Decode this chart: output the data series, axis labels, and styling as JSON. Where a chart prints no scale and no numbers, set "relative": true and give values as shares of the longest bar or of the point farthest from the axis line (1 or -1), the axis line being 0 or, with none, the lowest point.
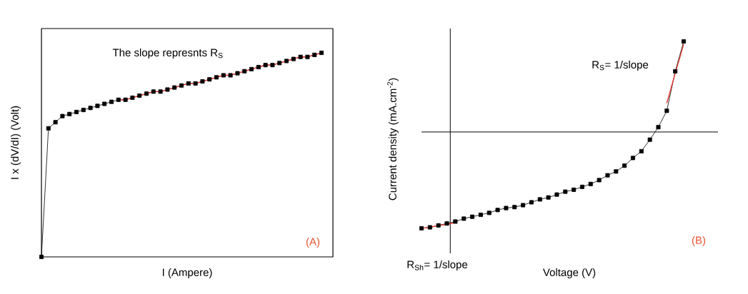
{
  "chart_data": [
    {
      "type": "line",
      "relative": true,
      "xlabel": "I (Ampere)",
      "ylabel": "I x (dV/dI) (Volt)",
      "annotations": [
        "The slope represnts R$_{S}$",
        "(A)"
      ],
      "categories": [
        null,
        null,
        null,
        null,
        null,
        null,
        null,
        null,
        null,
        null,
        null,
        null,
        null,
        null,
        null,
        null,
        null,
        null,
        null,
        null,
        null,
        null,
        null,
        null,
        null,
        null,
        null,
        null,
        null,
        null,
        null,
        null,
        null,
        null,
        null,
        null,
        null,
        null,
        null,
        null,
        null
      ],
      "series": [
        {
          "color": "#000000",
          "marker": "square",
          "values": [
            0,
            0.63,
            0.66,
            0.69,
            0.7,
            0.71,
            0.72,
            0.73,
            0.74,
            0.75,
            0.76,
            0.77,
            0.77,
            0.78,
            0.79,
            0.8,
            0.81,
            0.81,
            0.82,
            0.83,
            0.84,
            0.85,
            0.85,
            0.86,
            0.87,
            0.88,
            0.89,
            0.89,
            0.9,
            0.91,
            0.92,
            0.93,
            0.94,
            0.94,
            0.95,
            0.96,
            0.97,
            0.98,
            0.98,
            0.99,
            1
          ]
        },
        {
          "color": "#e8302a",
          "marker": "none",
          "values": [
            null,
            null,
            null,
            null,
            null,
            null,
            null,
            null,
            null,
            null,
            null,
            0.77,
            0.77,
            0.78,
            0.79,
            0.8,
            0.81,
            0.81,
            0.82,
            0.83,
            0.84,
            0.85,
            0.85,
            0.86,
            0.87,
            0.88,
            0.89,
            0.89,
            0.9,
            0.91,
            0.92,
            0.93,
            0.94,
            0.94,
            0.95,
            0.96,
            0.97,
            0.98,
            0.98,
            0.99,
            1
          ]
        }
      ]
    },
    {
      "type": "line",
      "relative": true,
      "xlabel": "Voltage (V)",
      "ylabel": "Current density (mA.cm$^{-2}$)",
      "annotations": [
        "R$_{S}$= 1/slope",
        "R$_{Sh}$= 1/slope",
        "(B)"
      ],
      "categories": [
        null,
        null,
        null,
        null,
        null,
        null,
        null,
        null,
        null,
        null,
        null,
        null,
        null,
        null,
        null,
        null,
        null,
        null,
        null,
        null,
        null,
        null,
        null,
        null,
        null,
        null,
        null,
        null,
        null,
        null,
        null,
        null
      ],
      "series": [
        {
          "color": "#000000",
          "marker": "square",
          "values": [
            -1.0,
            -0.99,
            -0.97,
            -0.95,
            -0.93,
            -0.9,
            -0.88,
            -0.86,
            -0.84,
            -0.81,
            -0.79,
            -0.78,
            -0.76,
            -0.73,
            -0.7,
            -0.68,
            -0.65,
            -0.62,
            -0.6,
            -0.57,
            -0.54,
            -0.5,
            -0.45,
            -0.41,
            -0.35,
            -0.27,
            -0.2,
            -0.08,
            0.05,
            0.22,
            0.63,
            0.94
          ]
        },
        {
          "color": "#e8302a",
          "marker": "none",
          "values": [
            null,
            null,
            null,
            null,
            null,
            null,
            null,
            null,
            null,
            null,
            null,
            null,
            null,
            null,
            null,
            null,
            null,
            null,
            null,
            null,
            null,
            null,
            null,
            null,
            null,
            null,
            null,
            null,
            null,
            0.3,
            0.61,
            0.91
          ]
        },
        {
          "color": "#e8302a",
          "marker": "none",
          "values": [
            -1.0,
            -0.99,
            -0.97,
            -0.96,
            -0.94,
            null,
            null,
            null,
            null,
            null,
            null,
            null,
            null,
            null,
            null,
            null,
            null,
            null,
            null,
            null,
            null,
            null,
            null,
            null,
            null,
            null,
            null,
            null,
            null,
            null,
            null,
            null
          ]
        }
      ]
    }
  ]
}
